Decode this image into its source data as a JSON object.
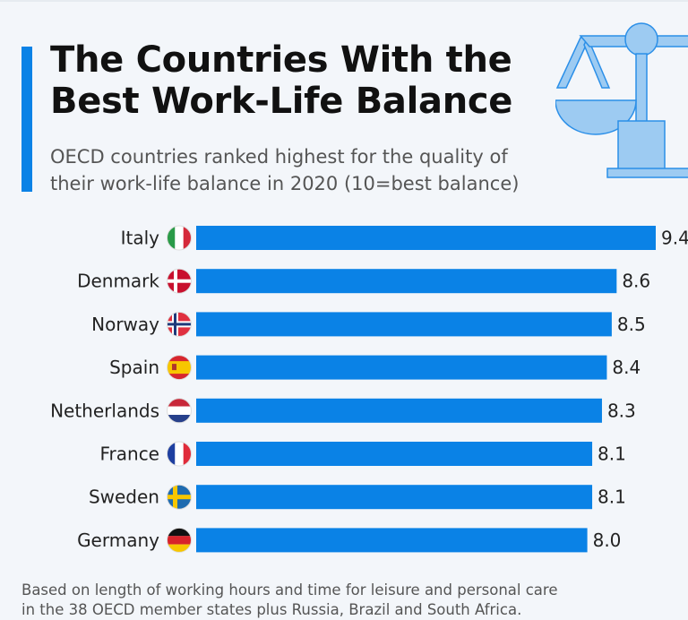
{
  "header": {
    "title_line1": "The Countries With the",
    "title_line2": "Best Work-Life Balance",
    "subtitle_line1": "OECD countries ranked highest for the quality of",
    "subtitle_line2": "their work-life balance in 2020 (10=best balance)",
    "icon": "scales-of-justice-icon"
  },
  "footnote": {
    "line1": "Based on length of working hours and time for leisure and personal care",
    "line2": "in the 38 OECD member states plus Russia, Brazil and South Africa."
  },
  "colors": {
    "bar": "#0a82e6",
    "accent": "#0a82e6",
    "background": "#f3f6fa"
  },
  "chart_data": {
    "type": "bar",
    "orientation": "horizontal",
    "title": "The Countries With the Best Work-Life Balance",
    "subtitle": "OECD countries ranked highest for the quality of their work-life balance in 2020 (10=best balance)",
    "categories": [
      "Italy",
      "Denmark",
      "Norway",
      "Spain",
      "Netherlands",
      "France",
      "Sweden",
      "Germany"
    ],
    "values": [
      9.4,
      8.6,
      8.5,
      8.4,
      8.3,
      8.1,
      8.1,
      8.0
    ],
    "value_labels": [
      "9.4",
      "8.6",
      "8.5",
      "8.4",
      "8.3",
      "8.1",
      "8.1",
      "8.0"
    ],
    "flags": [
      "italy-flag-icon",
      "denmark-flag-icon",
      "norway-flag-icon",
      "spain-flag-icon",
      "netherlands-flag-icon",
      "france-flag-icon",
      "sweden-flag-icon",
      "germany-flag-icon"
    ],
    "xlim": [
      0,
      9.4
    ],
    "grid": false,
    "legend": "none"
  }
}
